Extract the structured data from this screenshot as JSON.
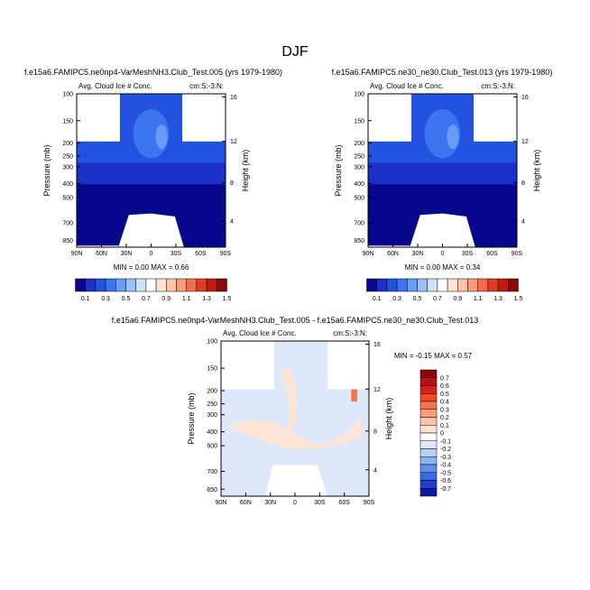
{
  "page": {
    "title": "DJF"
  },
  "chart_data": [
    {
      "id": "panel1",
      "type": "heatmap",
      "title": "f.e15a6.FAMIPC5.ne0np4-VarMeshNH3.Club_Test.005 (yrs 1979-1980)",
      "left_label": "Avg. Cloud Ice # Conc.",
      "right_label": "cm:S:-3:N:",
      "ylabel": "Pressure (mb)",
      "y2label": "Height (km)",
      "x_ticks": [
        "90N",
        "60N",
        "30N",
        "0",
        "30S",
        "60S",
        "90S"
      ],
      "y_ticks": [
        "100",
        "150",
        "200",
        "250",
        "300",
        "400",
        "500",
        "700",
        "850"
      ],
      "y2_ticks": [
        "16",
        "12",
        "8",
        "4"
      ],
      "stats": {
        "min": "0.00",
        "max": "0.66"
      },
      "stats_text": "MIN =   0.00  MAX =   0.66",
      "colorbar": {
        "orientation": "horizontal",
        "labels": [
          "0.1",
          "0.3",
          "0.5",
          "0.7",
          "0.9",
          "1.1",
          "1.3",
          "1.5"
        ],
        "colors": [
          "#08088f",
          "#1a30c8",
          "#2452e0",
          "#3d74f0",
          "#6a9cf5",
          "#9cc1f7",
          "#cfe3f8",
          "#ffffff",
          "#fde3d4",
          "#fcc3a8",
          "#f99a78",
          "#f46b48",
          "#e23b22",
          "#c01a12",
          "#8e0707"
        ]
      }
    },
    {
      "id": "panel2",
      "type": "heatmap",
      "title": "f.e15a6.FAMIPC5.ne30_ne30.Club_Test.013 (yrs 1979-1980)",
      "left_label": "Avg. Cloud Ice # Conc.",
      "right_label": "cm:S:-3:N:",
      "ylabel": "Pressure (mb)",
      "y2label": "Height (km)",
      "x_ticks": [
        "90N",
        "60N",
        "30N",
        "0",
        "30S",
        "60S",
        "90S"
      ],
      "y_ticks": [
        "100",
        "150",
        "200",
        "250",
        "300",
        "400",
        "500",
        "700",
        "850"
      ],
      "y2_ticks": [
        "16",
        "12",
        "8",
        "4"
      ],
      "stats": {
        "min": "0.00",
        "max": "0.34"
      },
      "stats_text": "MIN =   0.00  MAX =   0.34",
      "colorbar": {
        "orientation": "horizontal",
        "labels": [
          "0.1",
          "0.3",
          "0.5",
          "0.7",
          "0.9",
          "1.1",
          "1.3",
          "1.5"
        ],
        "colors": [
          "#08088f",
          "#1a30c8",
          "#2452e0",
          "#3d74f0",
          "#6a9cf5",
          "#9cc1f7",
          "#cfe3f8",
          "#ffffff",
          "#fde3d4",
          "#fcc3a8",
          "#f99a78",
          "#f46b48",
          "#e23b22",
          "#c01a12",
          "#8e0707"
        ]
      }
    },
    {
      "id": "panel3",
      "type": "heatmap",
      "title": "f.e15a6.FAMIPC5.ne0np4-VarMeshNH3.Club_Test.005 - f.e15a6.FAMIPC5.ne30_ne30.Club_Test.013",
      "left_label": "Avg. Cloud Ice # Conc.",
      "right_label": "cm:S:-3:N:",
      "ylabel": "Pressure (mb)",
      "y2label": "Height (km)",
      "x_ticks": [
        "90N",
        "60N",
        "30N",
        "0",
        "30S",
        "60S",
        "90S"
      ],
      "y_ticks": [
        "100",
        "150",
        "200",
        "250",
        "300",
        "400",
        "500",
        "700",
        "850"
      ],
      "y2_ticks": [
        "16",
        "12",
        "8",
        "4"
      ],
      "stats": {
        "min": "-0.15",
        "max": "0.57"
      },
      "stats_text": "MIN =  -0.15  MAX =   0.57",
      "colorbar": {
        "orientation": "vertical",
        "labels": [
          "0.7",
          "0.6",
          "0.5",
          "0.4",
          "0.3",
          "0.2",
          "0.1",
          "0",
          "-0.1",
          "-0.2",
          "-0.3",
          "-0.4",
          "-0.5",
          "-0.6",
          "-0.7"
        ],
        "colors": [
          "#8e0707",
          "#b71010",
          "#d62419",
          "#ed4a2a",
          "#f8754c",
          "#fb9f7a",
          "#fcc5a9",
          "#fde4d4",
          "#ffffff",
          "#dde9fa",
          "#b7d0f6",
          "#8cb2f2",
          "#5f8ef0",
          "#3a68e6",
          "#1f3fcf",
          "#0d1a9e"
        ]
      }
    }
  ]
}
